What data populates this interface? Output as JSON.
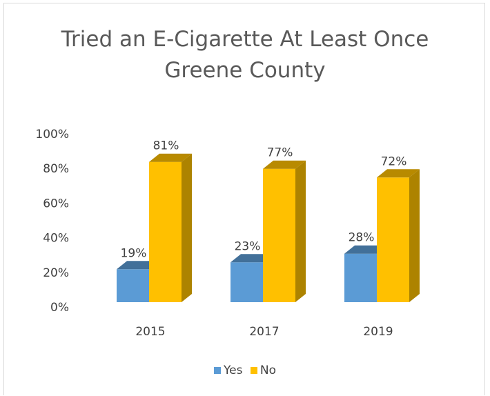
{
  "chart_data": {
    "type": "bar",
    "title": "Tried an E-Cigarette At Least Once",
    "subtitle": "Greene County",
    "categories": [
      "2015",
      "2017",
      "2019"
    ],
    "series": [
      {
        "name": "Yes",
        "values": [
          19,
          23,
          28
        ],
        "labels": [
          "19%",
          "23%",
          "28%"
        ],
        "color": "#5b9bd5"
      },
      {
        "name": "No",
        "values": [
          81,
          77,
          72
        ],
        "labels": [
          "81%",
          "77%",
          "72%"
        ],
        "color": "#ffc000"
      }
    ],
    "yticks": [
      "0%",
      "20%",
      "40%",
      "60%",
      "80%",
      "100%"
    ],
    "ylim": [
      0,
      100
    ],
    "grid": false,
    "legend_position": "bottom",
    "style": "3d-column"
  }
}
